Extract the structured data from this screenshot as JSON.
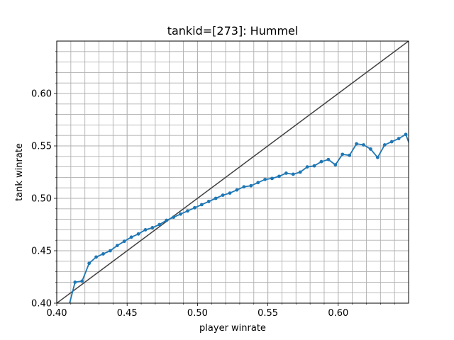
{
  "chart_data": {
    "type": "line",
    "title": "tankid=[273]: Hummel",
    "xlabel": "player winrate",
    "ylabel": "tank winrate",
    "xlim": [
      0.4,
      0.65
    ],
    "ylim": [
      0.4,
      0.65
    ],
    "grid": true,
    "minor_grid": true,
    "x_ticks": [
      "0.40",
      "0.45",
      "0.50",
      "0.55",
      "0.60"
    ],
    "y_ticks": [
      "0.40",
      "0.45",
      "0.50",
      "0.55",
      "0.60"
    ],
    "colors": {
      "series": "#1f77b4",
      "reference": "#404040",
      "grid": "#b0b0b0"
    },
    "reference_line": {
      "x": [
        0.4,
        0.65
      ],
      "y": [
        0.4,
        0.65
      ]
    },
    "series": [
      {
        "x": [
          0.408,
          0.413,
          0.418,
          0.423,
          0.428,
          0.433,
          0.438,
          0.443,
          0.448,
          0.453,
          0.458,
          0.463,
          0.468,
          0.473,
          0.478,
          0.483,
          0.488,
          0.493,
          0.498,
          0.503,
          0.508,
          0.513,
          0.518,
          0.523,
          0.528,
          0.533,
          0.538,
          0.543,
          0.548,
          0.553,
          0.558,
          0.563,
          0.568,
          0.573,
          0.578,
          0.583,
          0.588,
          0.593,
          0.598,
          0.603,
          0.608,
          0.613,
          0.618,
          0.623,
          0.628,
          0.633,
          0.638,
          0.643,
          0.648,
          0.653
        ],
        "y": [
          0.394,
          0.42,
          0.421,
          0.438,
          0.444,
          0.447,
          0.45,
          0.455,
          0.459,
          0.463,
          0.466,
          0.47,
          0.472,
          0.475,
          0.479,
          0.482,
          0.485,
          0.488,
          0.491,
          0.494,
          0.497,
          0.5,
          0.503,
          0.505,
          0.508,
          0.511,
          0.512,
          0.515,
          0.518,
          0.519,
          0.521,
          0.524,
          0.523,
          0.525,
          0.53,
          0.531,
          0.535,
          0.537,
          0.532,
          0.542,
          0.541,
          0.552,
          0.551,
          0.547,
          0.539,
          0.551,
          0.554,
          0.557,
          0.561,
          0.543
        ]
      }
    ]
  }
}
